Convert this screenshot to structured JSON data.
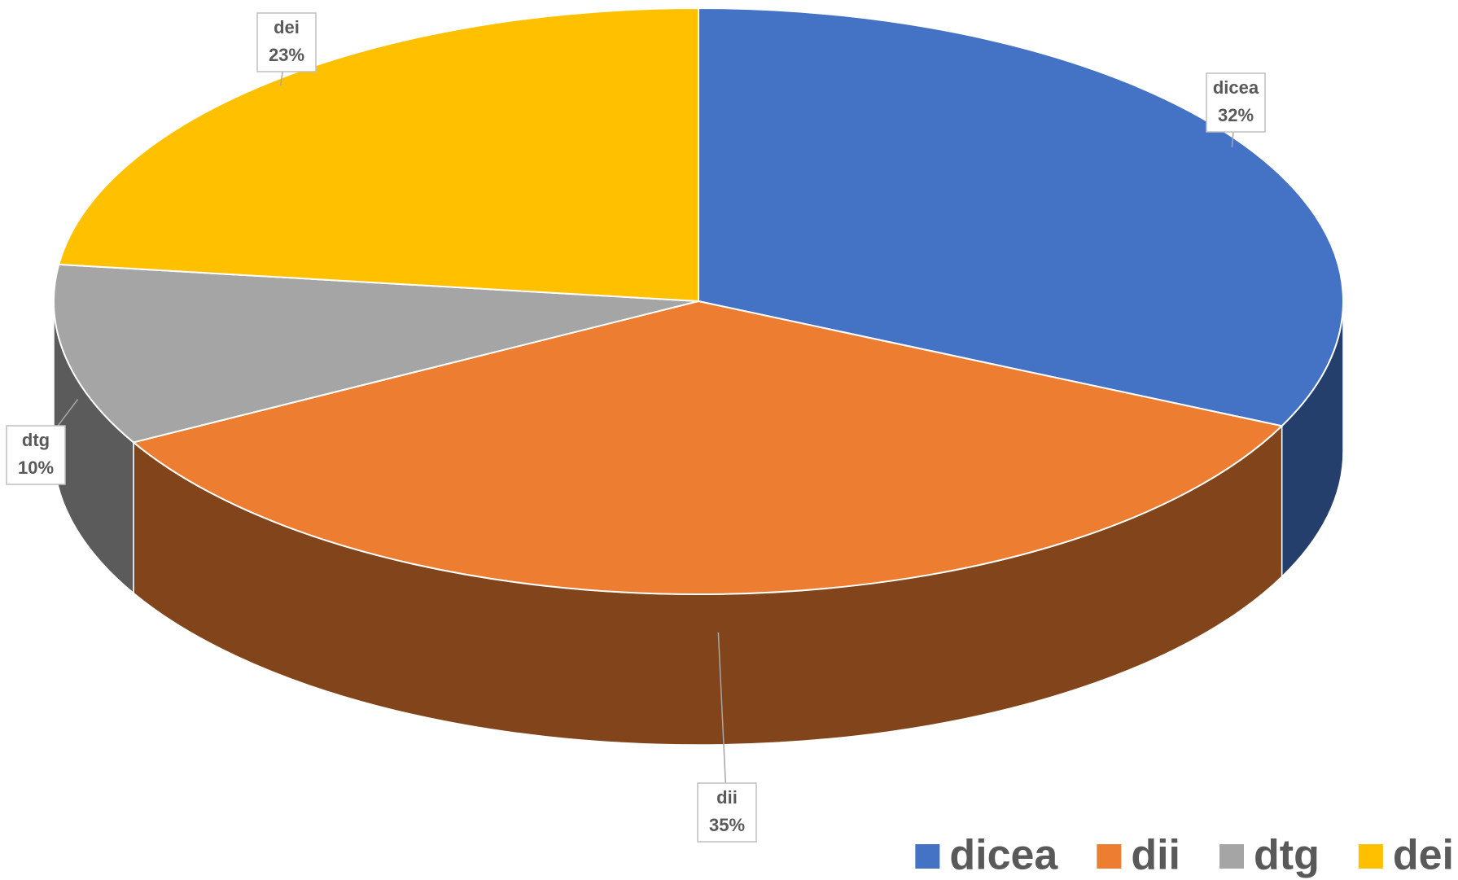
{
  "chart_data": {
    "type": "pie",
    "categories": [
      "dicea",
      "dii",
      "dtg",
      "dei"
    ],
    "values": [
      32,
      35,
      10,
      23
    ],
    "value_labels": [
      "32%",
      "35%",
      "10%",
      "23%"
    ],
    "colors": [
      "#4472c4",
      "#ed7d31",
      "#a5a5a5",
      "#ffc000"
    ],
    "legend": "bottom-right"
  }
}
